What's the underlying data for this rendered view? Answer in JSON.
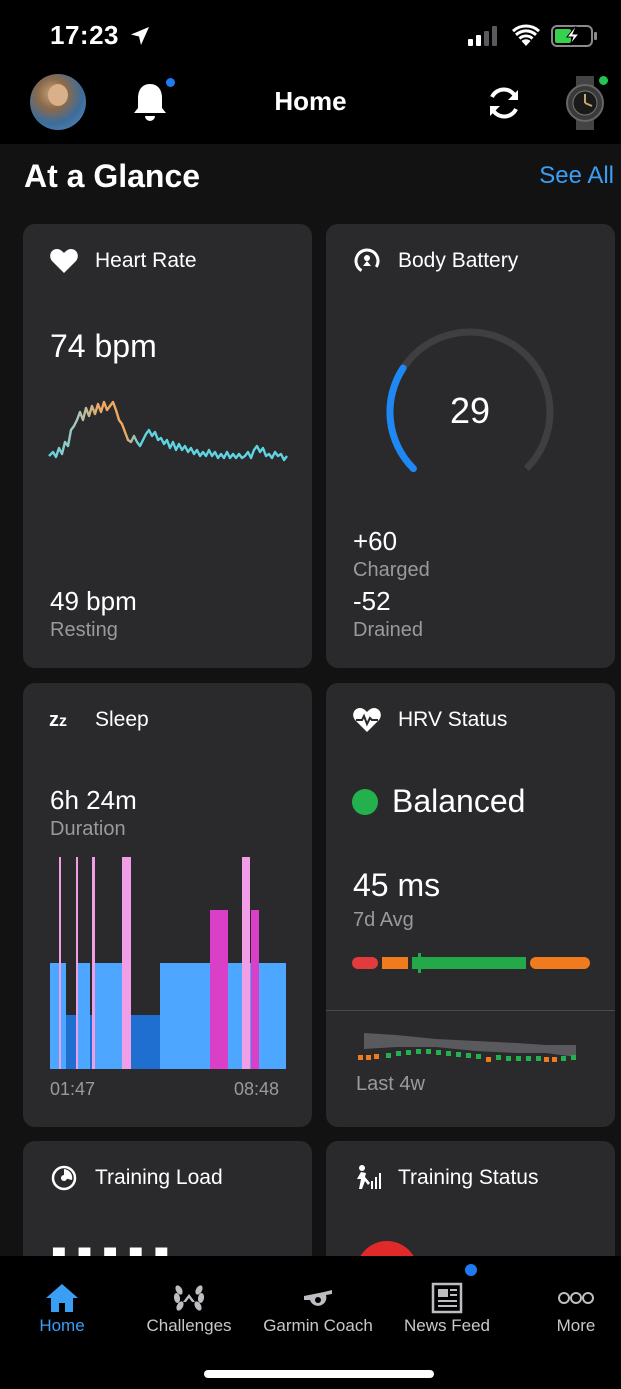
{
  "status_bar": {
    "time": "17:23"
  },
  "header": {
    "title": "Home"
  },
  "glance": {
    "title": "At a Glance",
    "see_all": "See All"
  },
  "heart_rate": {
    "title": "Heart Rate",
    "current": "74 bpm",
    "resting_value": "49 bpm",
    "resting_label": "Resting"
  },
  "body_battery": {
    "title": "Body Battery",
    "value": "29",
    "level": 29,
    "charged_value": "+60",
    "charged_label": "Charged",
    "drained_value": "-52",
    "drained_label": "Drained"
  },
  "sleep": {
    "title": "Sleep",
    "duration_value": "6h 24m",
    "duration_label": "Duration",
    "start_time": "01:47",
    "end_time": "08:48"
  },
  "hrv": {
    "title": "HRV Status",
    "status": "Balanced",
    "avg_value": "45 ms",
    "avg_label": "7d Avg",
    "trend_label": "Last 4w"
  },
  "training_load": {
    "title": "Training Load"
  },
  "training_status": {
    "title": "Training Status"
  },
  "tabs": [
    {
      "label": "Home",
      "icon": "home-icon"
    },
    {
      "label": "Challenges",
      "icon": "laurel-icon"
    },
    {
      "label": "Garmin Coach",
      "icon": "whistle-icon"
    },
    {
      "label": "News Feed",
      "icon": "newspaper-icon"
    },
    {
      "label": "More",
      "icon": "more-dots-icon"
    }
  ],
  "colors": {
    "accent_blue": "#3a9ef5",
    "card_bg": "#2a2a2c",
    "balanced_green": "#23b14d",
    "sleep_light": "#4da6ff",
    "sleep_deep": "#1f6fd1",
    "sleep_rem": "#d93fc7",
    "sleep_awake": "#f09fe6"
  }
}
